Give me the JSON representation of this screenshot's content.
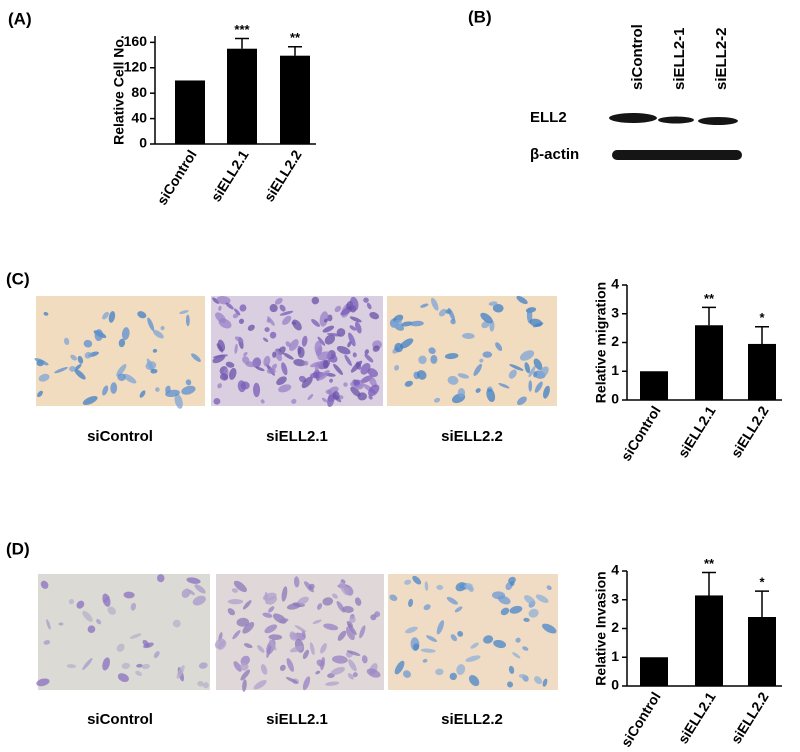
{
  "panels": [
    "(A)",
    "(B)",
    "(C)",
    "(D)"
  ],
  "blot": {
    "lanes": [
      "siControl",
      "siELL2-1",
      "siELL2-2"
    ],
    "rows": [
      "ELL2",
      "β-actin"
    ]
  },
  "micrographs": [
    {
      "captions": [
        "siControl",
        "siELL2.1",
        "siELL2.2"
      ]
    },
    {
      "captions": [
        "siControl",
        "siELL2.1",
        "siELL2.2"
      ]
    }
  ],
  "chart_data": [
    {
      "type": "bar",
      "ylabel": "Relative Cell No.",
      "categories": [
        "siControl",
        "siELL2.1",
        "siELL2.2"
      ],
      "values": [
        100,
        150,
        139
      ],
      "errors": [
        null,
        16,
        14
      ],
      "annotations": [
        null,
        "***",
        "**"
      ],
      "color": "#000000",
      "ylim": [
        0,
        170
      ],
      "yticks": [
        0,
        40,
        80,
        120,
        160
      ]
    },
    {
      "type": "bar",
      "ylabel": "Relative migration",
      "categories": [
        "siControl",
        "siELL2.1",
        "siELL2.2"
      ],
      "values": [
        1,
        2.6,
        1.95
      ],
      "errors": [
        null,
        0.62,
        0.6
      ],
      "annotations": [
        null,
        "**",
        "*"
      ],
      "color": "#000000",
      "ylim": [
        0,
        4
      ],
      "yticks": [
        0,
        1,
        2,
        3,
        4
      ]
    },
    {
      "type": "bar",
      "ylabel": "Relative Invasion",
      "categories": [
        "siControl",
        "siELL2.1",
        "siELL2.2"
      ],
      "values": [
        1,
        3.15,
        2.4
      ],
      "errors": [
        null,
        0.8,
        0.9
      ],
      "annotations": [
        null,
        "**",
        "*"
      ],
      "color": "#000000",
      "ylim": [
        0,
        4
      ],
      "yticks": [
        0,
        1,
        2,
        3,
        4
      ]
    }
  ]
}
